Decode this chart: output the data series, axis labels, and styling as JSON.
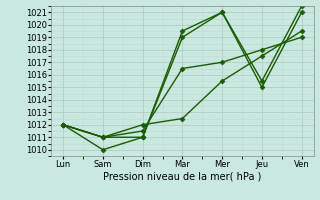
{
  "title": "",
  "xlabel": "Pression niveau de la mer( hPa )",
  "xlim": [
    -0.3,
    6.3
  ],
  "ylim": [
    1009.5,
    1021.5
  ],
  "yticks": [
    1010,
    1011,
    1012,
    1013,
    1014,
    1015,
    1016,
    1017,
    1018,
    1019,
    1020,
    1021
  ],
  "xtick_labels": [
    "Lun",
    "Sam",
    "Dim",
    "Mar",
    "Mer",
    "Jeu",
    "Ven"
  ],
  "xtick_positions": [
    0,
    1,
    2,
    3,
    4,
    5,
    6
  ],
  "background_color": "#c8e8e0",
  "grid_color_major": "#b0c8c0",
  "grid_color_minor": "#c0d8d0",
  "line_color": "#1a5c00",
  "series": [
    [
      1012,
      1011,
      1011,
      1019,
      1021,
      1015,
      1021
    ],
    [
      1012,
      1010,
      1011,
      1019.5,
      1021,
      1015.5,
      1021.5
    ],
    [
      1012,
      1011,
      1011.5,
      1016.5,
      1017,
      1018,
      1019
    ],
    [
      1012,
      1011,
      1012,
      1012.5,
      1015.5,
      1017.5,
      1019.5
    ]
  ],
  "marker": "D",
  "marker_size": 2.5,
  "line_width": 1.0,
  "tick_fontsize": 6,
  "xlabel_fontsize": 7
}
